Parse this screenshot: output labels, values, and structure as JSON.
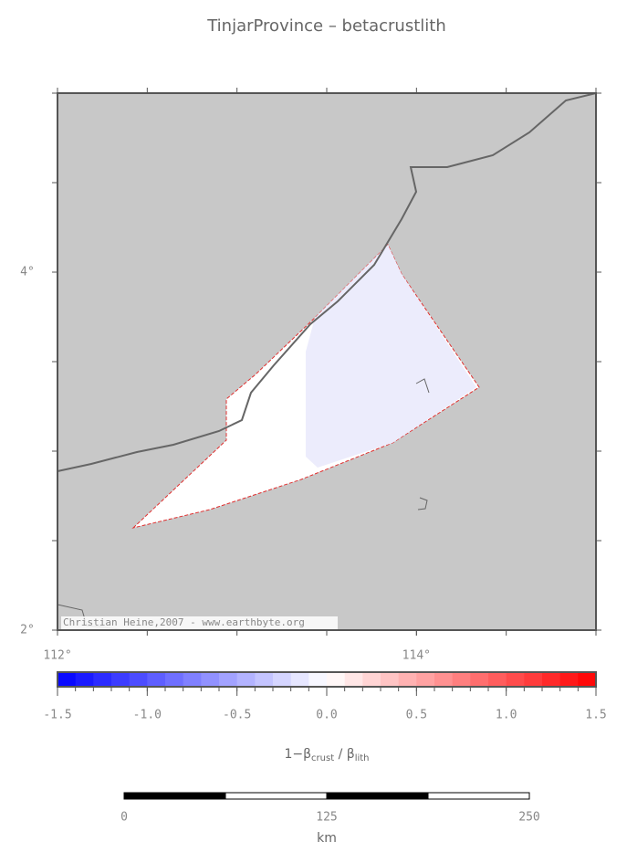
{
  "chart_data": {
    "type": "map",
    "title": "TinjarProvince – betacrustlith",
    "xlim": [
      112,
      115
    ],
    "ylim": [
      2,
      5
    ],
    "xticks": [
      {
        "value": 112,
        "label": "112°"
      },
      {
        "value": 114,
        "label": "114°"
      }
    ],
    "yticks": [
      {
        "value": 2,
        "label": "2°"
      },
      {
        "value": 4,
        "label": "4°"
      }
    ],
    "minor_tick_step": 0.5,
    "credit": "Christian Heine,2007 - www.earthbyte.org",
    "colorbar": {
      "clim": [
        -1.5,
        1.5
      ],
      "step": 0.1,
      "colors": {
        "low": "#0000ff",
        "mid": "#ffffff",
        "high": "#ff0000"
      },
      "ticks": [
        -1.5,
        {
          "value": -1.0,
          "label": "-1.0"
        },
        -0.5,
        {
          "value": 0.0,
          "label": "0.0"
        },
        0.5,
        {
          "value": 1.0,
          "label": "1.0"
        },
        1.5
      ],
      "label": {
        "prefix": "1−β",
        "sub1": "crust",
        "mid": " / β",
        "sub2": "lith"
      }
    },
    "scale_bar": {
      "ticks": [
        0,
        125,
        250
      ],
      "segments": 4,
      "unit": "km"
    }
  }
}
